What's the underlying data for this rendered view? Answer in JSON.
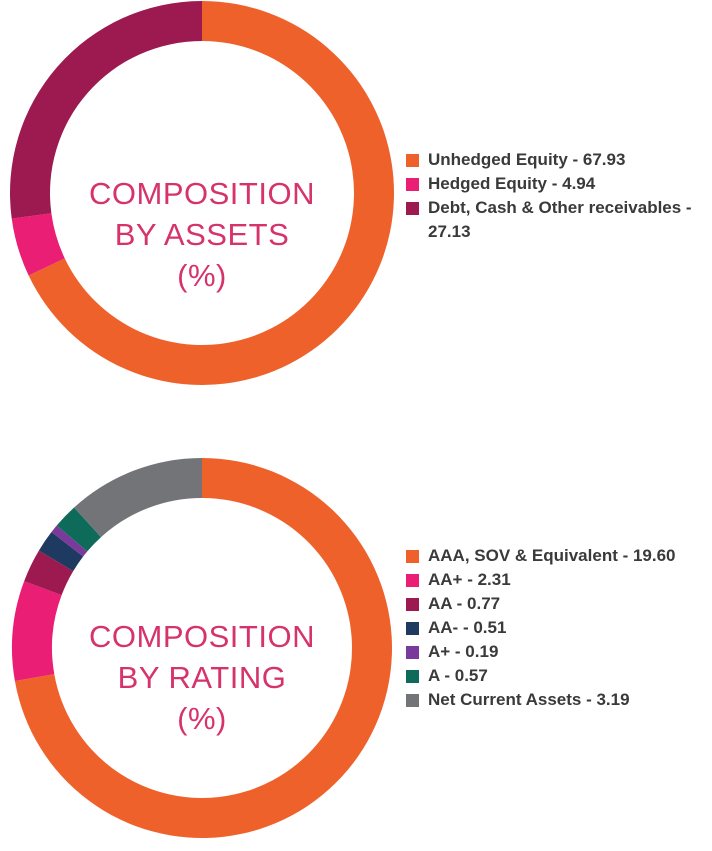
{
  "chart_data": [
    {
      "type": "pie",
      "center_title": [
        "COMPOSITION",
        "BY ASSETS",
        "(%)"
      ],
      "slices": [
        {
          "label": "Unhedged Equity - 67.93",
          "value": 67.93,
          "color": "#ef612b"
        },
        {
          "label": "Hedged Equity - 4.94",
          "value": 4.94,
          "color": "#e91e74"
        },
        {
          "label": "Debt, Cash & Other receivables - 27.13",
          "value": 27.13,
          "color": "#9c1a50"
        }
      ]
    },
    {
      "type": "pie",
      "center_title": [
        "COMPOSITION",
        "BY RATING",
        "(%)"
      ],
      "slices": [
        {
          "label": "AAA, SOV & Equivalent - 19.60",
          "value": 19.6,
          "color": "#ef612b"
        },
        {
          "label": "AA+ - 2.31",
          "value": 2.31,
          "color": "#e91e74"
        },
        {
          "label": "AA - 0.77",
          "value": 0.77,
          "color": "#9c1a50"
        },
        {
          "label": "AA- - 0.51",
          "value": 0.51,
          "color": "#1f3a60"
        },
        {
          "label": "A+ - 0.19",
          "value": 0.19,
          "color": "#7a3a9c"
        },
        {
          "label": "A - 0.57",
          "value": 0.57,
          "color": "#0e6b5a"
        },
        {
          "label": "Net Current Assets - 3.19",
          "value": 3.19,
          "color": "#737478"
        }
      ]
    }
  ]
}
